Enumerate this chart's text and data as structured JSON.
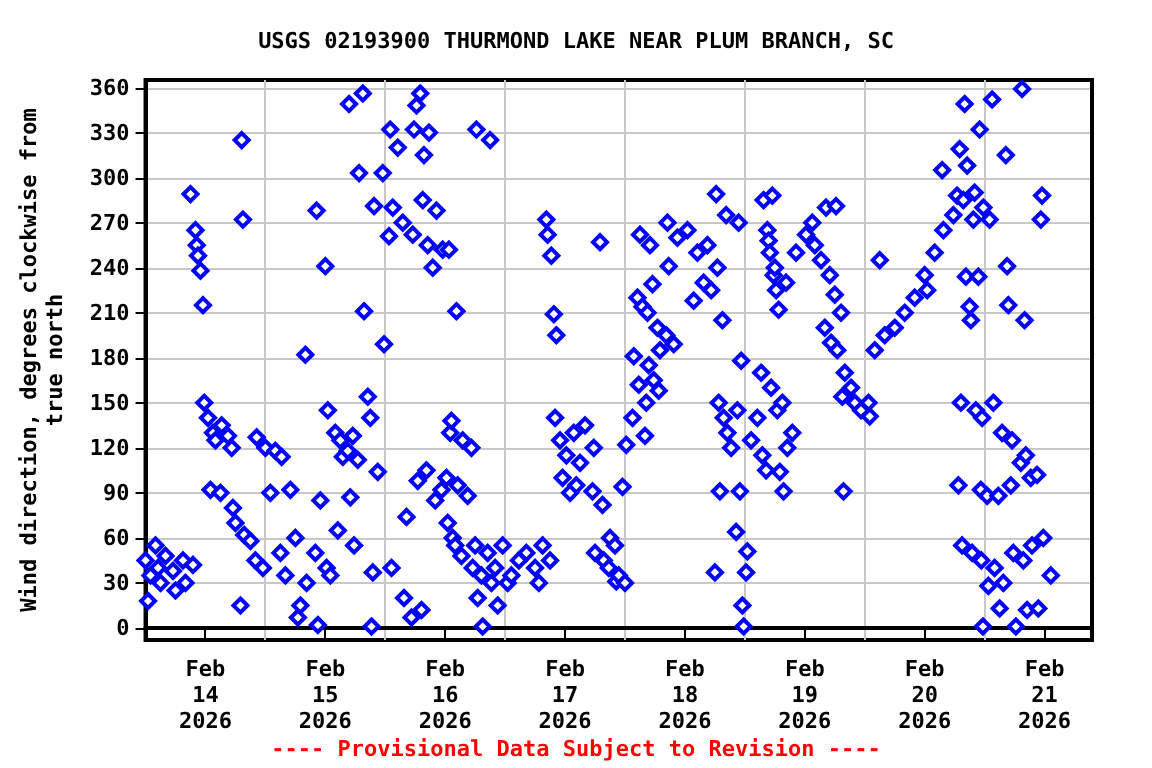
{
  "chart_data": {
    "type": "scatter",
    "title": "USGS 02193900 THURMOND LAKE NEAR PLUM BRANCH, SC",
    "ylabel": "Wind direction, degrees clockwise from\ntrue north",
    "annotations": [
      "---- Provisional Data Subject to Revision ----"
    ],
    "xlim": [
      "2026-02-14T00:00",
      "2026-02-21T21:30"
    ],
    "xticks": [
      {
        "value": "2026-02-14T12:00",
        "label": "Feb\n14\n2026"
      },
      {
        "value": "2026-02-15T00:00",
        "label": null
      },
      {
        "value": "2026-02-15T12:00",
        "label": "Feb\n15\n2026"
      },
      {
        "value": "2026-02-16T00:00",
        "label": null
      },
      {
        "value": "2026-02-16T12:00",
        "label": "Feb\n16\n2026"
      },
      {
        "value": "2026-02-17T00:00",
        "label": null
      },
      {
        "value": "2026-02-17T12:00",
        "label": "Feb\n17\n2026"
      },
      {
        "value": "2026-02-18T00:00",
        "label": null
      },
      {
        "value": "2026-02-18T12:00",
        "label": "Feb\n18\n2026"
      },
      {
        "value": "2026-02-19T00:00",
        "label": null
      },
      {
        "value": "2026-02-19T12:00",
        "label": "Feb\n19\n2026"
      },
      {
        "value": "2026-02-20T00:00",
        "label": null
      },
      {
        "value": "2026-02-20T12:00",
        "label": "Feb\n20\n2026"
      },
      {
        "value": "2026-02-21T00:00",
        "label": null
      },
      {
        "value": "2026-02-21T12:00",
        "label": "Feb\n21\n2026"
      }
    ],
    "ylim": [
      -8,
      365
    ],
    "yticks": [
      0,
      30,
      60,
      90,
      120,
      150,
      180,
      210,
      240,
      270,
      300,
      330,
      360
    ],
    "grid": true,
    "marker": "diamond",
    "series": [
      {
        "color": "#0000ff",
        "x": [
          "2026-02-14T00:00",
          "2026-02-14T00:30",
          "2026-02-14T01:00",
          "2026-02-14T02:00",
          "2026-02-14T02:30",
          "2026-02-14T03:00",
          "2026-02-14T04:00",
          "2026-02-14T05:30",
          "2026-02-14T06:00",
          "2026-02-14T07:30",
          "2026-02-14T08:00",
          "2026-02-14T09:00",
          "2026-02-14T09:30",
          "2026-02-14T10:00",
          "2026-02-14T10:15",
          "2026-02-14T10:30",
          "2026-02-14T11:00",
          "2026-02-14T11:30",
          "2026-02-14T11:45",
          "2026-02-14T12:30",
          "2026-02-14T13:00",
          "2026-02-14T13:30",
          "2026-02-14T14:00",
          "2026-02-14T15:00",
          "2026-02-14T15:15",
          "2026-02-14T16:30",
          "2026-02-14T17:15",
          "2026-02-14T17:30",
          "2026-02-14T18:00",
          "2026-02-14T19:00",
          "2026-02-14T19:15",
          "2026-02-14T19:30",
          "2026-02-14T19:45",
          "2026-02-14T21:00",
          "2026-02-14T22:00",
          "2026-02-14T22:15",
          "2026-02-14T23:30",
          "2026-02-15T00:00",
          "2026-02-15T01:00",
          "2026-02-15T02:00",
          "2026-02-15T03:00",
          "2026-02-15T03:15",
          "2026-02-15T04:00",
          "2026-02-15T05:00",
          "2026-02-15T06:00",
          "2026-02-15T06:30",
          "2026-02-15T07:00",
          "2026-02-15T08:00",
          "2026-02-15T08:15",
          "2026-02-15T10:00",
          "2026-02-15T10:15",
          "2026-02-15T10:30",
          "2026-02-15T11:00",
          "2026-02-15T12:00",
          "2026-02-15T12:15",
          "2026-02-15T12:30",
          "2026-02-15T13:00",
          "2026-02-15T14:00",
          "2026-02-15T14:30",
          "2026-02-15T15:00",
          "2026-02-15T15:30",
          "2026-02-15T16:30",
          "2026-02-15T16:45",
          "2026-02-15T17:00",
          "2026-02-15T17:30",
          "2026-02-15T17:45",
          "2026-02-15T18:30",
          "2026-02-15T18:45",
          "2026-02-15T19:30",
          "2026-02-15T19:45",
          "2026-02-15T20:30",
          "2026-02-15T21:00",
          "2026-02-15T21:15",
          "2026-02-15T21:30",
          "2026-02-15T21:45",
          "2026-02-15T22:30",
          "2026-02-15T23:30",
          "2026-02-15T23:45",
          "2026-02-16T00:45",
          "2026-02-16T01:00",
          "2026-02-16T01:15",
          "2026-02-16T01:30",
          "2026-02-16T02:30",
          "2026-02-16T03:30",
          "2026-02-16T03:45",
          "2026-02-16T04:15",
          "2026-02-16T05:15",
          "2026-02-16T05:30",
          "2026-02-16T05:45",
          "2026-02-16T06:15",
          "2026-02-16T06:30",
          "2026-02-16T07:00",
          "2026-02-16T07:15",
          "2026-02-16T07:30",
          "2026-02-16T07:45",
          "2026-02-16T08:15",
          "2026-02-16T08:30",
          "2026-02-16T08:45",
          "2026-02-16T09:30",
          "2026-02-16T10:00",
          "2026-02-16T10:15",
          "2026-02-16T11:15",
          "2026-02-16T11:30",
          "2026-02-16T12:15",
          "2026-02-16T12:30",
          "2026-02-16T12:45",
          "2026-02-16T13:00",
          "2026-02-16T13:15",
          "2026-02-16T13:30",
          "2026-02-16T14:00",
          "2026-02-16T14:15",
          "2026-02-16T14:30",
          "2026-02-16T15:15",
          "2026-02-16T15:30",
          "2026-02-16T16:30",
          "2026-02-16T17:15",
          "2026-02-16T17:30",
          "2026-02-16T18:00",
          "2026-02-16T18:15",
          "2026-02-16T18:30",
          "2026-02-16T19:15",
          "2026-02-16T19:30",
          "2026-02-16T20:30",
          "2026-02-16T21:00",
          "2026-02-16T21:15",
          "2026-02-16T22:00",
          "2026-02-16T22:30",
          "2026-02-16T23:30",
          "2026-02-17T00:30",
          "2026-02-17T01:15",
          "2026-02-17T02:45",
          "2026-02-17T04:15",
          "2026-02-17T06:00",
          "2026-02-17T06:45",
          "2026-02-17T07:30",
          "2026-02-17T08:15",
          "2026-02-17T08:30",
          "2026-02-17T09:00",
          "2026-02-17T09:15",
          "2026-02-17T09:45",
          "2026-02-17T10:00",
          "2026-02-17T10:15",
          "2026-02-17T11:00",
          "2026-02-17T11:30",
          "2026-02-17T12:15",
          "2026-02-17T13:00",
          "2026-02-17T13:45",
          "2026-02-17T14:15",
          "2026-02-17T15:00",
          "2026-02-17T16:00",
          "2026-02-17T17:30",
          "2026-02-17T17:45",
          "2026-02-17T18:00",
          "2026-02-17T19:00",
          "2026-02-17T19:30",
          "2026-02-17T19:45",
          "2026-02-17T20:45",
          "2026-02-17T21:00",
          "2026-02-17T22:00",
          "2026-02-17T22:15",
          "2026-02-17T22:45",
          "2026-02-17T23:30",
          "2026-02-18T00:00",
          "2026-02-18T00:15",
          "2026-02-18T01:30",
          "2026-02-18T01:45",
          "2026-02-18T02:30",
          "2026-02-18T02:45",
          "2026-02-18T03:00",
          "2026-02-18T03:30",
          "2026-02-18T04:00",
          "2026-02-18T04:15",
          "2026-02-18T04:30",
          "2026-02-18T04:45",
          "2026-02-18T05:00",
          "2026-02-18T05:30",
          "2026-02-18T05:45",
          "2026-02-18T06:30",
          "2026-02-18T06:45",
          "2026-02-18T07:00",
          "2026-02-18T08:15",
          "2026-02-18T08:30",
          "2026-02-18T08:45",
          "2026-02-18T09:45",
          "2026-02-18T10:30",
          "2026-02-18T12:30",
          "2026-02-18T13:45",
          "2026-02-18T14:30",
          "2026-02-18T15:45",
          "2026-02-18T16:30",
          "2026-02-18T17:15",
          "2026-02-18T18:00",
          "2026-02-18T18:15",
          "2026-02-18T18:30",
          "2026-02-18T18:45",
          "2026-02-18T19:00",
          "2026-02-18T19:30",
          "2026-02-18T19:45",
          "2026-02-18T20:15",
          "2026-02-18T20:30",
          "2026-02-18T21:15",
          "2026-02-18T22:15",
          "2026-02-18T22:30",
          "2026-02-18T22:45",
          "2026-02-18T23:00",
          "2026-02-18T23:15",
          "2026-02-18T23:30",
          "2026-02-18T23:45",
          "2026-02-19T00:15",
          "2026-02-19T00:30",
          "2026-02-19T01:15",
          "2026-02-19T02:30",
          "2026-02-19T03:15",
          "2026-02-19T03:30",
          "2026-02-19T03:45",
          "2026-02-19T04:15",
          "2026-02-19T04:30",
          "2026-02-19T04:45",
          "2026-02-19T05:00",
          "2026-02-19T05:15",
          "2026-02-19T05:30",
          "2026-02-19T05:45",
          "2026-02-19T06:00",
          "2026-02-19T06:15",
          "2026-02-19T06:30",
          "2026-02-19T06:45",
          "2026-02-19T07:00",
          "2026-02-19T07:30",
          "2026-02-19T07:45",
          "2026-02-19T08:15",
          "2026-02-19T08:30",
          "2026-02-19T09:30",
          "2026-02-19T10:15",
          "2026-02-19T12:15",
          "2026-02-19T13:30",
          "2026-02-19T14:00",
          "2026-02-19T15:15",
          "2026-02-19T16:00",
          "2026-02-19T16:15",
          "2026-02-19T17:00",
          "2026-02-19T17:15",
          "2026-02-19T18:00",
          "2026-02-19T18:15",
          "2026-02-19T18:30",
          "2026-02-19T19:15",
          "2026-02-19T19:30",
          "2026-02-19T19:45",
          "2026-02-19T20:00",
          "2026-02-19T21:15",
          "2026-02-19T22:00",
          "2026-02-19T23:15",
          "2026-02-20T00:45",
          "2026-02-20T01:00",
          "2026-02-20T02:00",
          "2026-02-20T03:00",
          "2026-02-20T04:00",
          "2026-02-20T06:00",
          "2026-02-20T08:00",
          "2026-02-20T10:00",
          "2026-02-20T12:00",
          "2026-02-20T12:30",
          "2026-02-20T14:00",
          "2026-02-20T15:30",
          "2026-02-20T15:45",
          "2026-02-20T17:45",
          "2026-02-20T18:30",
          "2026-02-20T18:45",
          "2026-02-20T19:00",
          "2026-02-20T19:15",
          "2026-02-20T19:30",
          "2026-02-20T19:45",
          "2026-02-20T20:00",
          "2026-02-20T20:15",
          "2026-02-20T20:30",
          "2026-02-20T21:00",
          "2026-02-20T21:15",
          "2026-02-20T21:30",
          "2026-02-20T21:45",
          "2026-02-20T22:00",
          "2026-02-20T22:15",
          "2026-02-20T22:45",
          "2026-02-20T23:00",
          "2026-02-20T23:15",
          "2026-02-20T23:20",
          "2026-02-20T23:30",
          "2026-02-20T23:40",
          "2026-02-20T23:45",
          "2026-02-21T00:30",
          "2026-02-21T00:45",
          "2026-02-21T01:00",
          "2026-02-21T01:30",
          "2026-02-21T01:45",
          "2026-02-21T02:00",
          "2026-02-21T02:45",
          "2026-02-21T03:00",
          "2026-02-21T03:30",
          "2026-02-21T03:45",
          "2026-02-21T04:15",
          "2026-02-21T04:30",
          "2026-02-21T04:45",
          "2026-02-21T05:15",
          "2026-02-21T05:30",
          "2026-02-21T05:45",
          "2026-02-21T06:15",
          "2026-02-21T07:15",
          "2026-02-21T07:30",
          "2026-02-21T07:45",
          "2026-02-21T08:00",
          "2026-02-21T08:15",
          "2026-02-21T08:30",
          "2026-02-21T09:15",
          "2026-02-21T09:30",
          "2026-02-21T10:30",
          "2026-02-21T10:45",
          "2026-02-21T11:15",
          "2026-02-21T11:30",
          "2026-02-21T11:45",
          "2026-02-21T13:15"
        ],
        "values": [
          45,
          18,
          35,
          55,
          40,
          30,
          48,
          38,
          25,
          45,
          30,
          289,
          42,
          265,
          255,
          248,
          238,
          215,
          150,
          140,
          92,
          130,
          125,
          90,
          135,
          128,
          120,
          80,
          70,
          15,
          325,
          272,
          62,
          58,
          45,
          127,
          40,
          120,
          90,
          118,
          50,
          114,
          35,
          92,
          60,
          7,
          15,
          182,
          30,
          50,
          278,
          2,
          85,
          241,
          40,
          145,
          35,
          130,
          65,
          125,
          114,
          118,
          349,
          87,
          128,
          55,
          112,
          303,
          356,
          211,
          154,
          140,
          1,
          37,
          281,
          104,
          303,
          189,
          261,
          332,
          40,
          280,
          320,
          270,
          20,
          74,
          7,
          262,
          332,
          348,
          98,
          356,
          12,
          285,
          315,
          105,
          255,
          330,
          240,
          85,
          278,
          92,
          252,
          100,
          70,
          252,
          130,
          138,
          60,
          55,
          211,
          95,
          48,
          125,
          88,
          120,
          40,
          55,
          332,
          20,
          35,
          1,
          50,
          325,
          30,
          40,
          15,
          55,
          30,
          35,
          45,
          50,
          40,
          30,
          55,
          272,
          262,
          45,
          248,
          209,
          140,
          195,
          125,
          100,
          115,
          90,
          130,
          95,
          110,
          135,
          91,
          120,
          50,
          257,
          82,
          45,
          40,
          60,
          55,
          31,
          35,
          94,
          30,
          122,
          140,
          181,
          220,
          162,
          262,
          214,
          128,
          150,
          210,
          175,
          255,
          229,
          165,
          200,
          158,
          185,
          195,
          270,
          241,
          189,
          260,
          265,
          218,
          250,
          230,
          255,
          225,
          37,
          289,
          240,
          150,
          91,
          205,
          140,
          275,
          130,
          120,
          64,
          145,
          270,
          91,
          178,
          15,
          1,
          37,
          51,
          125,
          140,
          170,
          115,
          285,
          105,
          265,
          258,
          250,
          160,
          288,
          235,
          240,
          225,
          145,
          212,
          104,
          150,
          91,
          230,
          120,
          130,
          250,
          262,
          270,
          255,
          245,
          200,
          280,
          235,
          190,
          222,
          281,
          185,
          210,
          154,
          91,
          170,
          160,
          150,
          145,
          150,
          141,
          185,
          245,
          195,
          200,
          210,
          220,
          235,
          225,
          250,
          305,
          265,
          275,
          288,
          95,
          319,
          150,
          55,
          285,
          349,
          234,
          308,
          214,
          205,
          50,
          272,
          290,
          145,
          234,
          332,
          92,
          45,
          140,
          1,
          280,
          88,
          28,
          272,
          352,
          150,
          40,
          88,
          13,
          130,
          30,
          315,
          241,
          215,
          95,
          125,
          50,
          1,
          110,
          359,
          45,
          205,
          115,
          12,
          100,
          55,
          102,
          13,
          272,
          288,
          60,
          35
        ]
      }
    ]
  }
}
